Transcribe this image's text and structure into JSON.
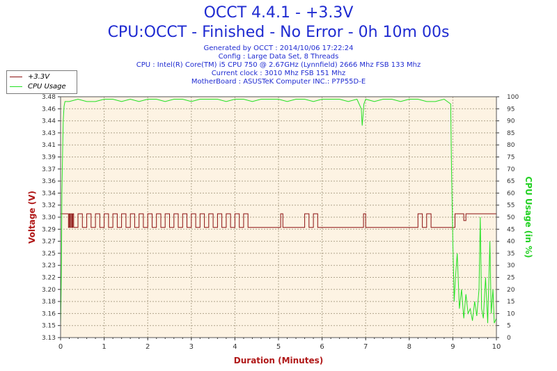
{
  "header": {
    "title": "OCCT 4.4.1 - +3.3V",
    "subtitle": "CPU:OCCT - Finished - No Error - 0h 10m 00s",
    "info_lines": [
      "Generated by OCCT : 2014/10/06 17:22:24",
      "Config : Large Data Set, 8 Threads",
      "CPU : Intel(R) Core(TM) i5 CPU 750 @ 2.67GHz (Lynnfield) 2666 Mhz FSB 133 Mhz",
      "Current clock : 3010 Mhz FSB 151 Mhz",
      "MotherBoard : ASUSTeK Computer INC.: P7P55D-E"
    ]
  },
  "legend": {
    "items": [
      {
        "label": "+3.3V",
        "color": "#8b1010"
      },
      {
        "label": "CPU Usage",
        "color": "#22e022"
      }
    ]
  },
  "colors": {
    "title": "#1f2bd1",
    "plot_background": "#fdf3e3",
    "grid": "#b0a48c",
    "voltage": "#8b1010",
    "cpu": "#22e022",
    "axis_label_left": "#b01818",
    "axis_label_right": "#22d022",
    "axis_label_x": "#b01818"
  },
  "chart_data": {
    "type": "line",
    "xlabel": "Duration (Minutes)",
    "ylabel": "Voltage (V)",
    "y2label": "CPU Usage (in %)",
    "xlim": [
      0,
      10
    ],
    "ylim": [
      3.13,
      3.48
    ],
    "y2lim": [
      0,
      100
    ],
    "x_ticks": [
      "0",
      "1",
      "2",
      "3",
      "4",
      "5",
      "6",
      "7",
      "8",
      "9",
      "10"
    ],
    "y_ticks": [
      "3.13",
      "3.15",
      "3.16",
      "3.18",
      "3.20",
      "3.22",
      "3.23",
      "3.25",
      "3.27",
      "3.29",
      "3.30",
      "3.32",
      "3.34",
      "3.36",
      "3.37",
      "3.39",
      "3.41",
      "3.43",
      "3.44",
      "3.46",
      "3.48"
    ],
    "y2_ticks": [
      "0",
      "5",
      "10",
      "15",
      "20",
      "25",
      "30",
      "35",
      "40",
      "45",
      "50",
      "55",
      "60",
      "65",
      "70",
      "75",
      "80",
      "85",
      "90",
      "95",
      "100"
    ],
    "grid": true,
    "legend_position": "top-left",
    "series": [
      {
        "name": "+3.3V",
        "axis": "left",
        "x": [
          0,
          0.18,
          0.18,
          0.2,
          0.22,
          0.24,
          0.26,
          0.28,
          0.3,
          0.4,
          0.5,
          0.6,
          0.7,
          0.8,
          0.9,
          1.0,
          1.1,
          1.2,
          1.3,
          1.4,
          1.5,
          1.6,
          1.7,
          1.8,
          1.9,
          2.0,
          2.1,
          2.2,
          2.3,
          2.4,
          2.5,
          2.6,
          2.7,
          2.8,
          2.9,
          3.0,
          3.1,
          3.2,
          3.3,
          3.4,
          3.5,
          3.6,
          3.7,
          3.8,
          3.9,
          4.0,
          4.1,
          4.2,
          4.3,
          4.4,
          5.0,
          5.05,
          5.1,
          5.5,
          5.6,
          5.7,
          5.8,
          5.9,
          6.0,
          6.9,
          6.95,
          7.0,
          8.1,
          8.2,
          8.3,
          8.4,
          8.5,
          8.6,
          8.95,
          9.0,
          9.05,
          9.2,
          9.25,
          9.3,
          9.4,
          10.0
        ],
        "y": [
          3.31,
          3.31,
          3.29,
          3.31,
          3.29,
          3.31,
          3.29,
          3.31,
          3.29,
          3.31,
          3.29,
          3.31,
          3.29,
          3.31,
          3.29,
          3.31,
          3.29,
          3.31,
          3.29,
          3.31,
          3.29,
          3.31,
          3.29,
          3.31,
          3.29,
          3.31,
          3.29,
          3.31,
          3.29,
          3.31,
          3.29,
          3.31,
          3.29,
          3.31,
          3.29,
          3.31,
          3.29,
          3.31,
          3.29,
          3.31,
          3.29,
          3.31,
          3.29,
          3.31,
          3.29,
          3.31,
          3.29,
          3.31,
          3.29,
          3.29,
          3.29,
          3.31,
          3.29,
          3.29,
          3.31,
          3.29,
          3.31,
          3.29,
          3.29,
          3.29,
          3.31,
          3.29,
          3.29,
          3.31,
          3.29,
          3.31,
          3.29,
          3.29,
          3.29,
          3.29,
          3.31,
          3.31,
          3.3,
          3.31,
          3.31,
          3.31
        ]
      },
      {
        "name": "CPU Usage",
        "axis": "right",
        "x": [
          0,
          0.01,
          0.02,
          0.03,
          0.05,
          0.06,
          0.08,
          0.1,
          0.2,
          0.4,
          0.6,
          0.8,
          1.0,
          1.2,
          1.4,
          1.6,
          1.8,
          2.0,
          2.2,
          2.4,
          2.6,
          2.8,
          3.0,
          3.2,
          3.4,
          3.6,
          3.8,
          4.0,
          4.2,
          4.4,
          4.6,
          4.8,
          5.0,
          5.2,
          5.4,
          5.6,
          5.8,
          6.0,
          6.2,
          6.4,
          6.6,
          6.8,
          6.9,
          6.92,
          6.94,
          6.96,
          7.0,
          7.2,
          7.4,
          7.6,
          7.8,
          8.0,
          8.2,
          8.4,
          8.6,
          8.8,
          8.95,
          8.97,
          9.0,
          9.03,
          9.06,
          9.1,
          9.15,
          9.2,
          9.25,
          9.3,
          9.35,
          9.4,
          9.45,
          9.5,
          9.55,
          9.6,
          9.63,
          9.66,
          9.7,
          9.75,
          9.8,
          9.85,
          9.88,
          9.92,
          9.95,
          10.0
        ],
        "y": [
          5,
          15,
          30,
          60,
          80,
          90,
          96,
          98,
          98,
          99,
          98,
          98,
          99,
          99,
          98,
          99,
          98,
          99,
          99,
          98,
          99,
          99,
          98,
          99,
          99,
          99,
          98,
          99,
          99,
          98,
          99,
          99,
          99,
          98,
          99,
          99,
          98,
          99,
          99,
          99,
          98,
          99,
          95,
          88,
          92,
          97,
          99,
          98,
          99,
          99,
          98,
          99,
          99,
          98,
          98,
          99,
          97,
          70,
          40,
          15,
          25,
          35,
          12,
          20,
          8,
          18,
          10,
          12,
          7,
          15,
          9,
          20,
          50,
          12,
          8,
          25,
          6,
          40,
          10,
          20,
          6,
          8
        ]
      }
    ]
  }
}
